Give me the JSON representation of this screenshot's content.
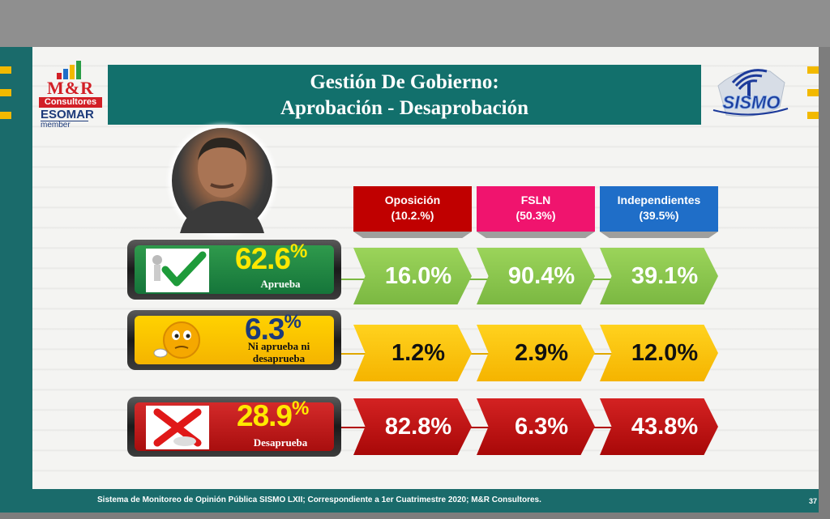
{
  "logo": {
    "brand": "M&R",
    "subtitle": "Consultores",
    "org": "ESOMAR",
    "member": "member"
  },
  "title": {
    "line1": "Gestión De Gobierno:",
    "line2": "Aprobación - Desaprobación"
  },
  "sismo_logo": "SISMO",
  "colors": {
    "teal": "#12706c",
    "oposicion": "#c00000",
    "fsln": "#f0146e",
    "independientes": "#1f6ec8",
    "approve": "#8cc63f",
    "neutral": "#ffc000",
    "disapprove": "#c00000"
  },
  "columns": [
    {
      "name": "Oposición",
      "share": "(10.2.%)"
    },
    {
      "name": "FSLN",
      "share": "(50.3%)"
    },
    {
      "name": "Independientes",
      "share": "(39.5%)"
    }
  ],
  "rows": [
    {
      "total": "62.6",
      "label": "Aprueba",
      "icon": "checkmark-icon",
      "values": [
        "16.0%",
        "90.4%",
        "39.1%"
      ]
    },
    {
      "total": "6.3",
      "label": "Ni aprueba ni desaprueba",
      "icon": "thinking-face-icon",
      "values": [
        "1.2%",
        "2.9%",
        "12.0%"
      ]
    },
    {
      "total": "28.9",
      "label": "Desaprueba",
      "icon": "cross-icon",
      "values": [
        "82.8%",
        "6.3%",
        "43.8%"
      ]
    }
  ],
  "pct_sign": "%",
  "footer": "Sistema de Monitoreo de Opinión Pública SISMO LXII; Correspondiente a 1er Cuatrimestre 2020; M&R Consultores.",
  "page_number": "37"
}
